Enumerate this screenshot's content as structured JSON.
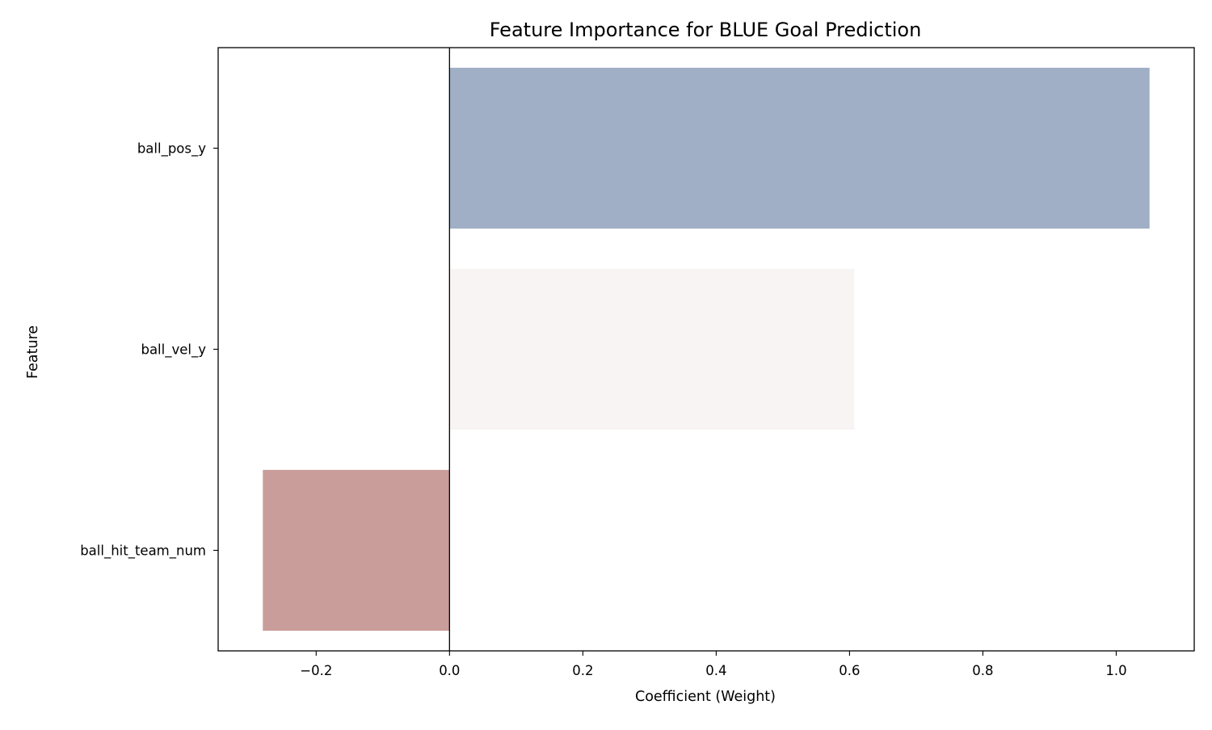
{
  "chart_data": {
    "type": "bar",
    "orientation": "horizontal",
    "title": "Feature Importance for BLUE Goal Prediction",
    "xlabel": "Coefficient (Weight)",
    "ylabel": "Feature",
    "categories": [
      "ball_pos_y",
      "ball_vel_y",
      "ball_hit_team_num"
    ],
    "values": [
      1.05,
      0.607,
      -0.28
    ],
    "bar_colors": [
      "#a0afc6",
      "#f8f4f3",
      "#c99d9a"
    ],
    "xlim": [
      -0.347,
      1.117
    ],
    "xticks": [
      -0.2,
      0.0,
      0.2,
      0.4,
      0.6,
      0.8,
      1.0
    ],
    "xtick_labels": [
      "−0.2",
      "0.0",
      "0.2",
      "0.4",
      "0.6",
      "0.8",
      "1.0"
    ],
    "zero_line": true,
    "grid": false,
    "legend": "none"
  }
}
